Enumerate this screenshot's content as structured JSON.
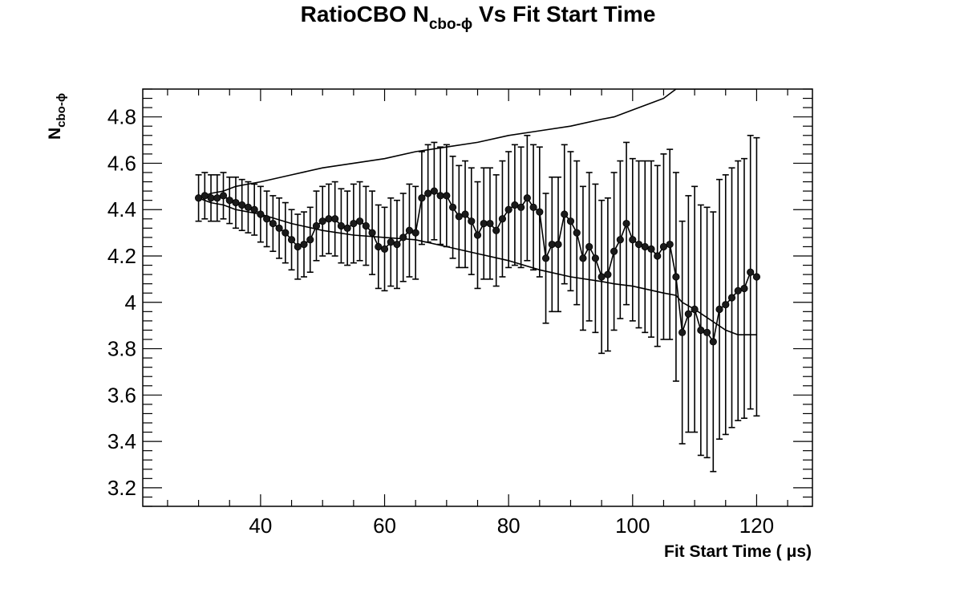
{
  "chart_data": {
    "type": "scatter",
    "title": {
      "main": "RatioCBO N",
      "sub": "cbo-ϕ",
      "rest": " Vs Fit Start Time"
    },
    "xlabel": "Fit Start Time ( μs)",
    "ylabel": {
      "main": "N",
      "sub": "cbo-ϕ"
    },
    "xlim": [
      21,
      129
    ],
    "ylim": [
      3.12,
      4.92
    ],
    "x_ticks": [
      40,
      60,
      80,
      100,
      120
    ],
    "y_ticks": [
      3.2,
      3.4,
      3.6,
      3.8,
      4,
      4.2,
      4.4,
      4.6,
      4.8
    ],
    "y_tick_labels": [
      "3.2",
      "3.4",
      "3.6",
      "3.8",
      "4",
      "4.2",
      "4.4",
      "4.6",
      "4.8"
    ],
    "grid": false,
    "legend": "none",
    "colors": {
      "data": "#000000",
      "marker": "#1a1a1a"
    },
    "series": [
      {
        "x": [
          30,
          31,
          32,
          33,
          34,
          35,
          36,
          37,
          38,
          39,
          40,
          41,
          42,
          43,
          44,
          45,
          46,
          47,
          48,
          49,
          50,
          51,
          52,
          53,
          54,
          55,
          56,
          57,
          58,
          59,
          60,
          61,
          62,
          63,
          64,
          65,
          66,
          67,
          68,
          69,
          70,
          71,
          72,
          73,
          74,
          75,
          76,
          77,
          78,
          79,
          80,
          81,
          82,
          83,
          84,
          85,
          86,
          87,
          88,
          89,
          90,
          91,
          92,
          93,
          94,
          95,
          96,
          97,
          98,
          99,
          100,
          101,
          102,
          103,
          104,
          105,
          106,
          107,
          108,
          109,
          110,
          111,
          112,
          113,
          114,
          115,
          116,
          117,
          118,
          119,
          120
        ],
        "y": [
          4.45,
          4.46,
          4.45,
          4.45,
          4.46,
          4.44,
          4.43,
          4.42,
          4.41,
          4.4,
          4.38,
          4.36,
          4.34,
          4.32,
          4.3,
          4.27,
          4.24,
          4.25,
          4.27,
          4.33,
          4.35,
          4.36,
          4.36,
          4.33,
          4.32,
          4.34,
          4.35,
          4.33,
          4.3,
          4.24,
          4.23,
          4.26,
          4.25,
          4.28,
          4.31,
          4.3,
          4.45,
          4.47,
          4.48,
          4.46,
          4.46,
          4.41,
          4.37,
          4.38,
          4.35,
          4.29,
          4.34,
          4.34,
          4.31,
          4.36,
          4.4,
          4.42,
          4.41,
          4.45,
          4.41,
          4.39,
          4.19,
          4.25,
          4.25,
          4.38,
          4.35,
          4.3,
          4.19,
          4.24,
          4.19,
          4.11,
          4.12,
          4.22,
          4.27,
          4.34,
          4.27,
          4.25,
          4.24,
          4.23,
          4.2,
          4.24,
          4.25,
          4.11,
          3.87,
          3.95,
          3.97,
          3.88,
          3.87,
          3.83,
          3.97,
          3.99,
          4.02,
          4.05,
          4.06,
          4.13,
          4.11
        ],
        "yerr": [
          0.1,
          0.1,
          0.1,
          0.1,
          0.1,
          0.1,
          0.11,
          0.11,
          0.11,
          0.11,
          0.12,
          0.12,
          0.12,
          0.13,
          0.13,
          0.13,
          0.14,
          0.14,
          0.14,
          0.15,
          0.15,
          0.15,
          0.16,
          0.16,
          0.16,
          0.17,
          0.17,
          0.17,
          0.18,
          0.18,
          0.18,
          0.19,
          0.19,
          0.19,
          0.2,
          0.2,
          0.2,
          0.21,
          0.21,
          0.21,
          0.22,
          0.22,
          0.22,
          0.23,
          0.23,
          0.23,
          0.24,
          0.24,
          0.24,
          0.25,
          0.25,
          0.26,
          0.26,
          0.27,
          0.27,
          0.28,
          0.28,
          0.29,
          0.29,
          0.3,
          0.3,
          0.31,
          0.31,
          0.32,
          0.32,
          0.33,
          0.33,
          0.34,
          0.34,
          0.35,
          0.35,
          0.36,
          0.37,
          0.38,
          0.39,
          0.4,
          0.41,
          0.45,
          0.48,
          0.51,
          0.53,
          0.54,
          0.54,
          0.56,
          0.56,
          0.56,
          0.56,
          0.56,
          0.56,
          0.59,
          0.6
        ]
      }
    ],
    "band": {
      "x": [
        30,
        32,
        34,
        36,
        38,
        40,
        45,
        50,
        55,
        60,
        65,
        70,
        75,
        80,
        85,
        90,
        95,
        97,
        100,
        105,
        107,
        108,
        110,
        115,
        117,
        120
      ],
      "upper": [
        4.45,
        4.47,
        4.48,
        4.5,
        4.51,
        4.52,
        4.55,
        4.58,
        4.6,
        4.62,
        4.65,
        4.67,
        4.69,
        4.72,
        4.74,
        4.76,
        4.79,
        4.8,
        4.83,
        4.88,
        4.92,
        4.92,
        4.92,
        4.92,
        4.92,
        4.92
      ],
      "lower": [
        4.45,
        4.43,
        4.42,
        4.4,
        4.39,
        4.38,
        4.34,
        4.31,
        4.29,
        4.28,
        4.27,
        4.24,
        4.21,
        4.18,
        4.14,
        4.11,
        4.09,
        4.08,
        4.07,
        4.04,
        4.03,
        4.0,
        3.97,
        3.88,
        3.86,
        3.86
      ]
    }
  }
}
